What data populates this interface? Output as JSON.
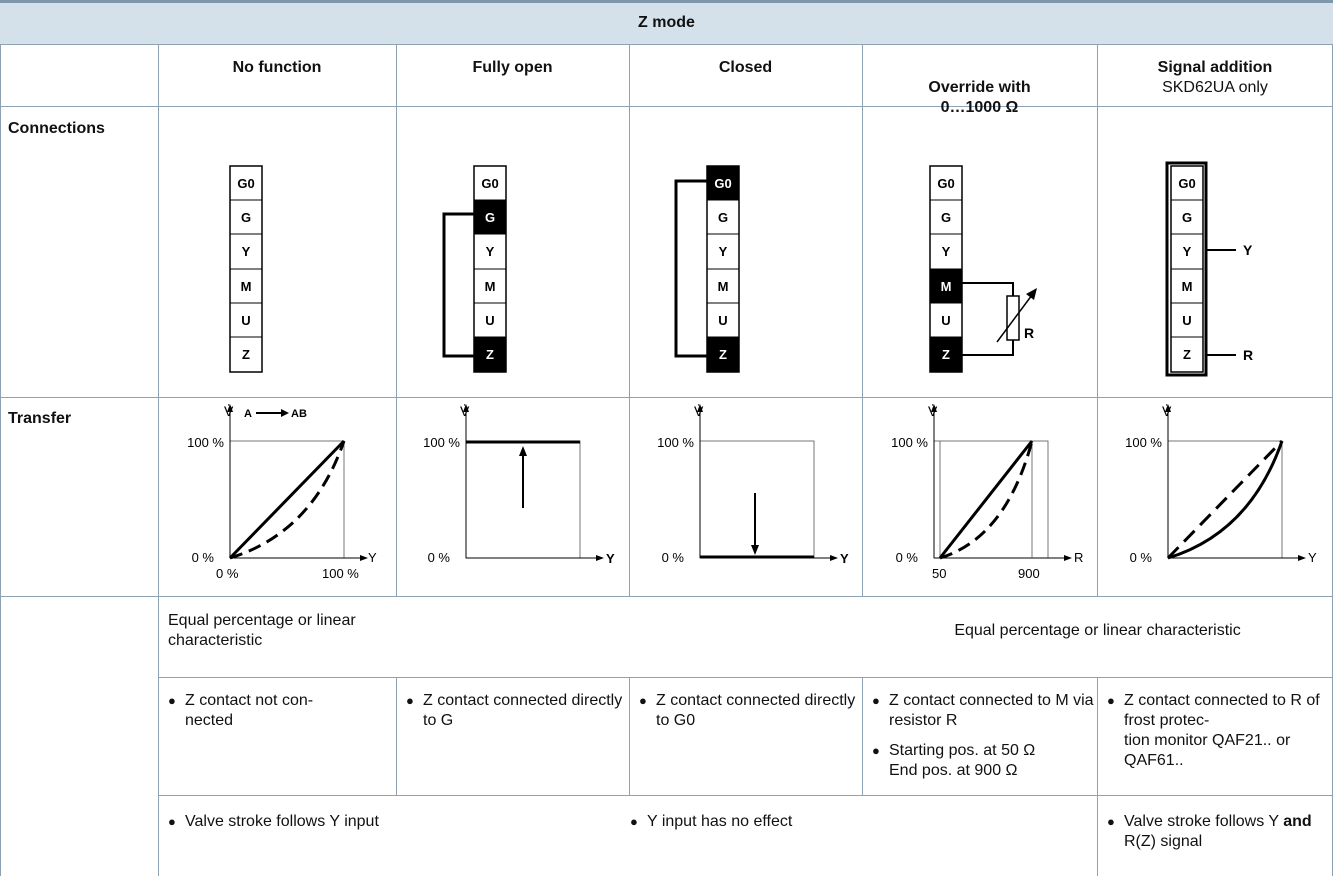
{
  "table": {
    "title": "Z mode",
    "columns": [
      {
        "title": "No function",
        "subtitle": ""
      },
      {
        "title": "Fully open",
        "subtitle": ""
      },
      {
        "title": "Closed",
        "subtitle": ""
      },
      {
        "title": "Override with\n0…1000 Ω",
        "subtitle": ""
      },
      {
        "title": "Signal addition",
        "subtitle": "SKD62UA only"
      }
    ],
    "row_labels": {
      "connections": "Connections",
      "transfer": "Transfer"
    },
    "terminals": [
      "G0",
      "G",
      "Y",
      "M",
      "U",
      "Z"
    ],
    "connection_labels": {
      "r": "R",
      "y": "Y",
      "r_out": "R"
    },
    "chart_labels": {
      "v_axis": "V̇",
      "flow": "A",
      "flow_to": "AB",
      "pct100": "100 %",
      "pct0": "0 %",
      "y": "Y",
      "r": "R",
      "r50": "50",
      "r900": "900"
    },
    "characteristic": {
      "col1": "Equal percentage or linear characteristic",
      "col45": "Equal percentage or linear characteristic"
    },
    "contact_notes": {
      "c1": "Z contact not con-\nnected",
      "c2": "Z contact connected directly to G",
      "c3": "Z contact connected directly to G0",
      "c4a": "Z contact connected to M via resistor R",
      "c4b": "Starting pos. at 50 Ω\nEnd pos. at 900 Ω",
      "c5": "Z contact connected to R of frost protec-\ntion monitor QAF21.. or QAF61.."
    },
    "stroke_notes": {
      "c1": "Valve stroke follows Y input",
      "c234": "Y input has no effect",
      "c5_pre": "Valve stroke follows Y ",
      "c5_bold": "and",
      "c5_post": " R(Z) signal"
    }
  }
}
